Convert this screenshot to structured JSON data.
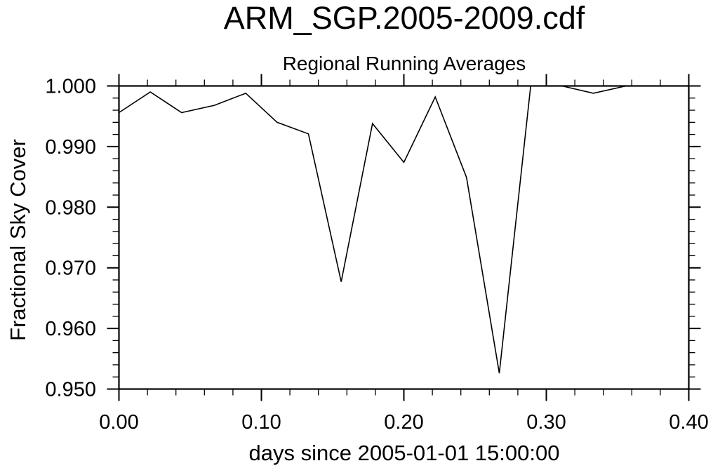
{
  "chart_data": {
    "type": "line",
    "title": "ARM_SGP.2005-2009.cdf",
    "subtitle": "Regional Running Averages",
    "xlabel": "days since 2005-01-01 15:00:00",
    "ylabel": "Fractional Sky Cover",
    "x": [
      0.0,
      0.022,
      0.044,
      0.067,
      0.089,
      0.111,
      0.133,
      0.156,
      0.178,
      0.2,
      0.222,
      0.244,
      0.267,
      0.289,
      0.311,
      0.333,
      0.356,
      0.378,
      0.4
    ],
    "values": [
      0.9956,
      0.999,
      0.9956,
      0.9968,
      0.9988,
      0.994,
      0.9921,
      0.9677,
      0.9938,
      0.9874,
      0.9982,
      0.9849,
      0.9526,
      1.0,
      1.0,
      0.9988,
      1.0,
      1.0,
      1.0
    ],
    "xlim": [
      0.0,
      0.4
    ],
    "ylim": [
      0.95,
      1.0
    ],
    "x_major_ticks": [
      0.0,
      0.1,
      0.2,
      0.3,
      0.4
    ],
    "x_major_labels": [
      "0.00",
      "0.10",
      "0.20",
      "0.30",
      "0.40"
    ],
    "x_minor_step": 0.02,
    "y_major_ticks": [
      1.0,
      0.99,
      0.98,
      0.97,
      0.96,
      0.95
    ],
    "y_major_labels": [
      "1.000",
      "0.990",
      "0.980",
      "0.970",
      "0.960",
      "0.950"
    ],
    "y_minor_step": 0.002,
    "grid": false,
    "legend": "none",
    "tick_style": "outward-all-four-sides",
    "line_color": "#000000",
    "axis_color": "#000000",
    "background": "#ffffff"
  }
}
